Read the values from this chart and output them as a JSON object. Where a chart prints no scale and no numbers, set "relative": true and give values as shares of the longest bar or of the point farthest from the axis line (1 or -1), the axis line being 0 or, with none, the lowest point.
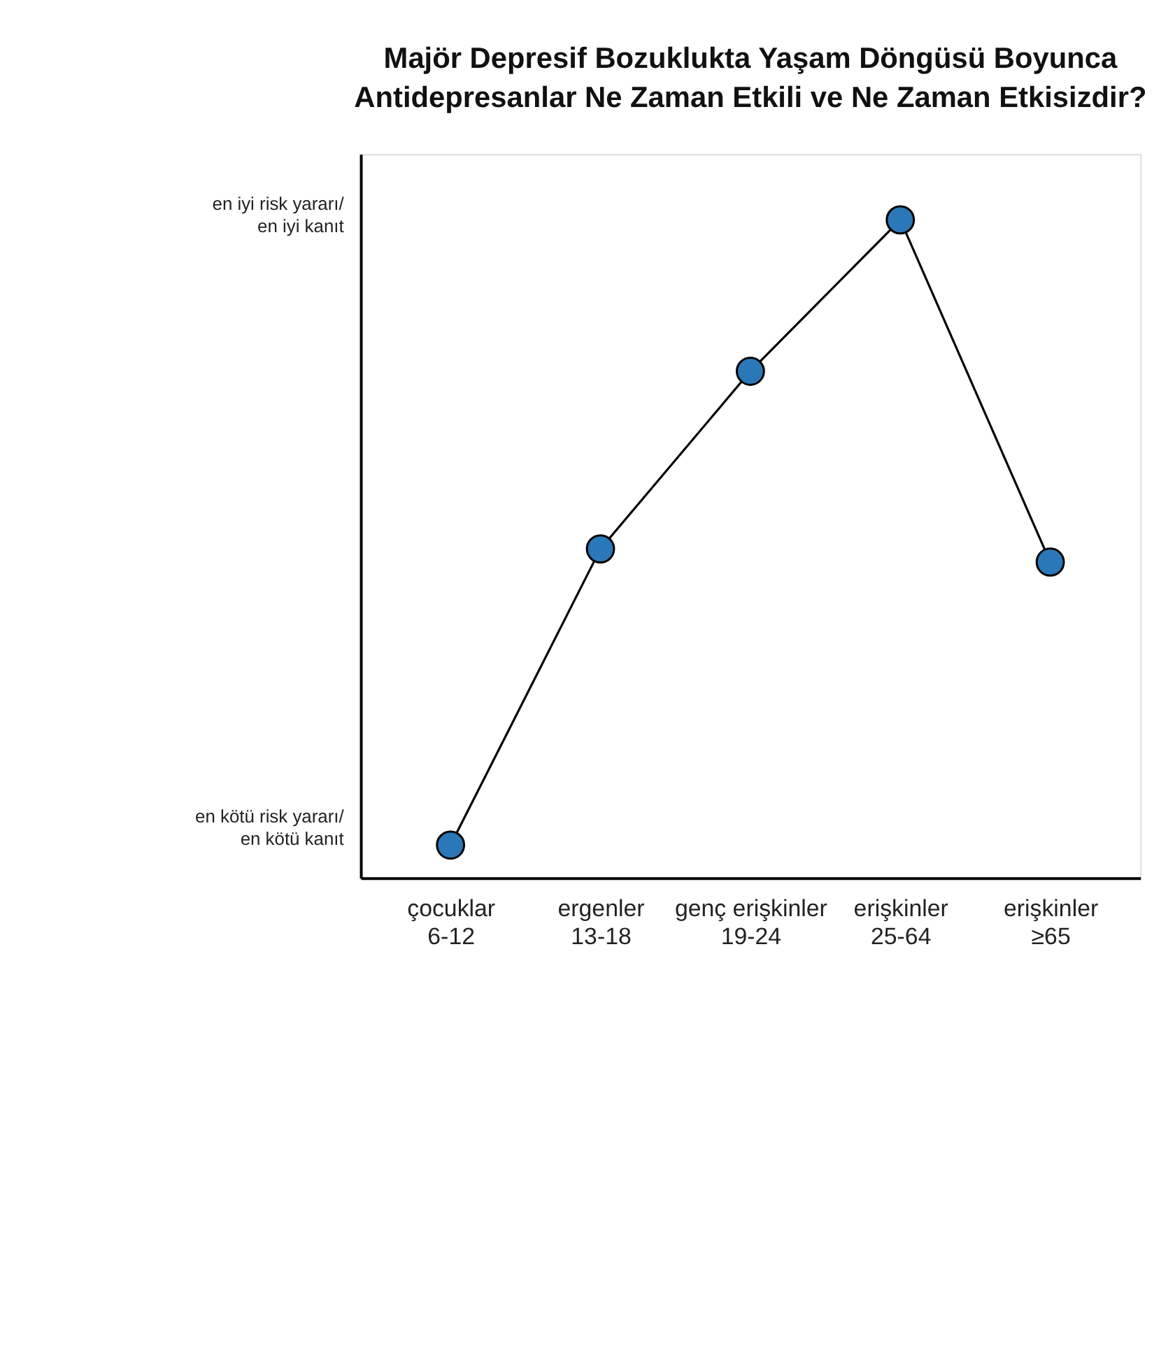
{
  "chart_data": {
    "type": "line",
    "title": "Majör Depresif Bozuklukta Yaşam Döngüsü Boyunca\nAntidepresanlar Ne Zaman Etkili ve Ne Zaman Etkisizdir?",
    "categories": [
      "çocuklar\n6-12",
      "ergenler\n13-18",
      "genç erişkinler\n19-24",
      "erişkinler\n25-64",
      "erişkinler\n≥65"
    ],
    "series": [
      {
        "color": "#2a78b8",
        "values": [
          0.05,
          0.5,
          0.77,
          1,
          0.48
        ]
      }
    ],
    "relative": true,
    "annotations": [
      "en iyi risk yararı/\nen iyi kanıt",
      "en kötü risk yararı/\nen kötü kanıt"
    ],
    "marker": "circle",
    "line_style": "solid",
    "grid": false
  }
}
